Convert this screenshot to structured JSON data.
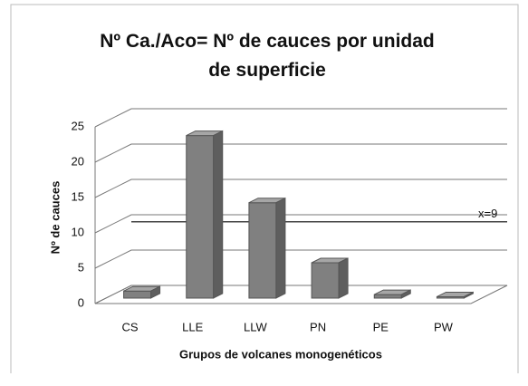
{
  "chart_data": {
    "type": "bar3d",
    "title": "Nº Ca./Aco= Nº de cauces por unidad de superficie",
    "x_label": "Grupos de volcanes monogenéticos",
    "y_label": "Nº de cauces",
    "categories": [
      "CS",
      "LLE",
      "LLW",
      "PN",
      "PE",
      "PW"
    ],
    "values": [
      1,
      23,
      13.5,
      5,
      0.5,
      0.2
    ],
    "color": "#808080",
    "ylim": [
      0,
      25
    ],
    "yticks": [
      0,
      5,
      10,
      15,
      20,
      25
    ],
    "grid": true,
    "reference_line": {
      "value": 9,
      "label": "x=9"
    }
  }
}
